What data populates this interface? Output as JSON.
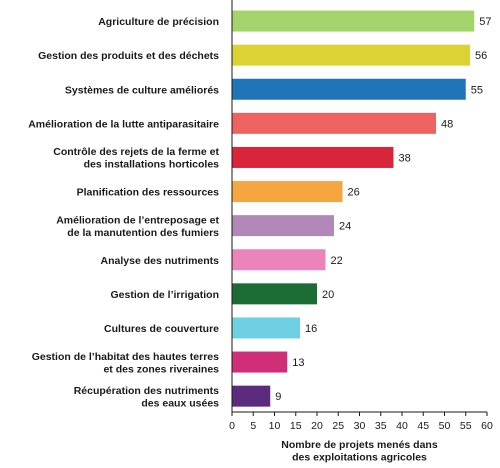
{
  "chart_data": {
    "type": "bar",
    "orientation": "horizontal",
    "categories": [
      [
        "Agriculture de précision"
      ],
      [
        "Gestion des produits et des déchets"
      ],
      [
        "Systèmes de culture améliorés"
      ],
      [
        "Amélioration de la lutte antiparasitaire"
      ],
      [
        "Contrôle des rejets de la ferme et",
        "des installations horticoles"
      ],
      [
        "Planification des ressources"
      ],
      [
        "Amélioration de l’entreposage et",
        "de la manutention des fumiers"
      ],
      [
        "Analyse des nutriments"
      ],
      [
        "Gestion de l’irrigation"
      ],
      [
        "Cultures de couverture"
      ],
      [
        "Gestion de l’habitat des hautes terres",
        "et des zones riveraines"
      ],
      [
        "Récupération des nutriments",
        "des eaux usées"
      ]
    ],
    "values": [
      57,
      56,
      55,
      48,
      38,
      26,
      24,
      22,
      20,
      16,
      13,
      9
    ],
    "colors": [
      "#a3d36b",
      "#dcd236",
      "#2074b8",
      "#ee6262",
      "#d8253c",
      "#f5a640",
      "#b288b8",
      "#ea84bb",
      "#1d6b35",
      "#6fcfe3",
      "#d02e79",
      "#5c2b7e"
    ],
    "xlabel": [
      "Nombre de projets menés dans",
      "des exploitations agricoles"
    ],
    "xlim": [
      0,
      60
    ],
    "xticks": [
      0,
      5,
      10,
      15,
      20,
      25,
      30,
      35,
      40,
      45,
      50,
      55,
      60
    ],
    "grid": false,
    "legend": "none"
  }
}
